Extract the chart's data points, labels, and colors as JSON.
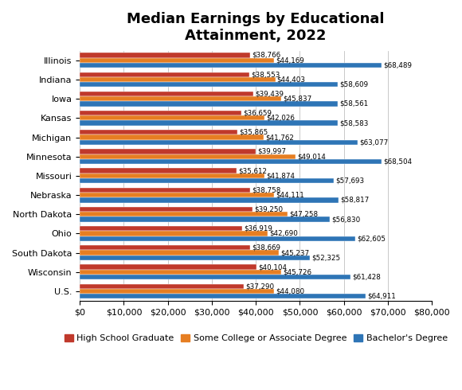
{
  "title": "Median Earnings by Educational\nAttainment, 2022",
  "states": [
    "Illinois",
    "Indiana",
    "Iowa",
    "Kansas",
    "Michigan",
    "Minnesota",
    "Missouri",
    "Nebraska",
    "North Dakota",
    "Ohio",
    "South Dakota",
    "Wisconsin",
    "U.S."
  ],
  "high_school": [
    38766,
    38553,
    39439,
    36659,
    35865,
    39997,
    35612,
    38758,
    39250,
    36919,
    38669,
    40104,
    37290
  ],
  "some_college": [
    44169,
    44403,
    45837,
    42026,
    41762,
    49014,
    41874,
    44111,
    47258,
    42690,
    45237,
    45726,
    44080
  ],
  "bachelors": [
    68489,
    58609,
    58561,
    58583,
    63077,
    68504,
    57693,
    58817,
    56830,
    62605,
    52325,
    61428,
    64911
  ],
  "color_hs": "#C0392B",
  "color_sc": "#E67E22",
  "color_ba": "#2E75B6",
  "legend_labels": [
    "High School Graduate",
    "Some College or Associate Degree",
    "Bachelor's Degree"
  ],
  "xlim": [
    0,
    80000
  ],
  "xticks": [
    0,
    10000,
    20000,
    30000,
    40000,
    50000,
    60000,
    70000,
    80000
  ],
  "bar_height": 0.26,
  "label_fontsize": 6.3,
  "title_fontsize": 13,
  "tick_fontsize": 8,
  "legend_fontsize": 8
}
